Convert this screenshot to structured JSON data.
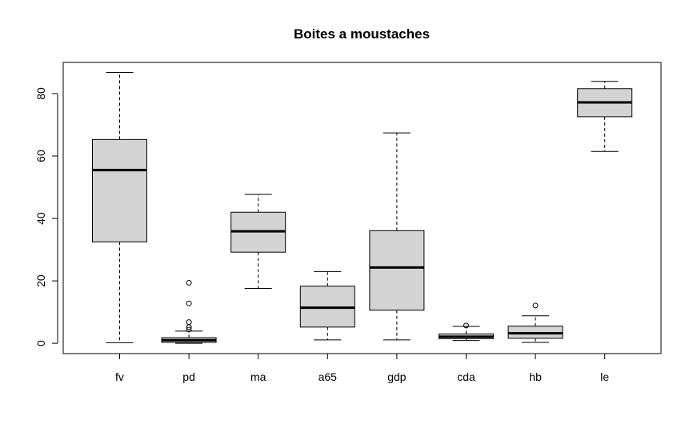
{
  "chart_data": {
    "type": "boxplot",
    "title": "Boites a moustaches",
    "xlabel": "",
    "ylabel": "",
    "ylim": [
      -3.3,
      90
    ],
    "yticks": [
      0,
      20,
      40,
      60,
      80
    ],
    "grid": false,
    "colors": {
      "box_fill": "#d3d3d3",
      "stroke": "#000000"
    },
    "boxes": [
      {
        "label": "fv",
        "min": 0.2,
        "q1": 32.5,
        "median": 55.5,
        "q3": 65.3,
        "max": 86.8,
        "outliers": []
      },
      {
        "label": "pd",
        "min": 0.0,
        "q1": 0.3,
        "median": 1.0,
        "q3": 1.8,
        "max": 3.9,
        "outliers": [
          4.4,
          5.2,
          6.8,
          12.8,
          19.4
        ]
      },
      {
        "label": "ma",
        "min": 17.6,
        "q1": 29.2,
        "median": 35.9,
        "q3": 42.0,
        "max": 47.7,
        "outliers": []
      },
      {
        "label": "a65",
        "min": 1.1,
        "q1": 5.2,
        "median": 11.4,
        "q3": 18.3,
        "max": 23.0,
        "outliers": []
      },
      {
        "label": "gdp",
        "min": 1.1,
        "q1": 10.6,
        "median": 24.3,
        "q3": 36.1,
        "max": 67.4,
        "outliers": []
      },
      {
        "label": "cda",
        "min": 0.9,
        "q1": 1.5,
        "median": 2.1,
        "q3": 3.0,
        "max": 5.4,
        "outliers": [
          5.7
        ]
      },
      {
        "label": "hb",
        "min": 0.3,
        "q1": 1.6,
        "median": 3.2,
        "q3": 5.5,
        "max": 8.8,
        "outliers": [
          12.1
        ]
      },
      {
        "label": "le",
        "min": 61.5,
        "q1": 72.6,
        "median": 77.2,
        "q3": 81.6,
        "max": 83.9,
        "outliers": []
      }
    ]
  }
}
